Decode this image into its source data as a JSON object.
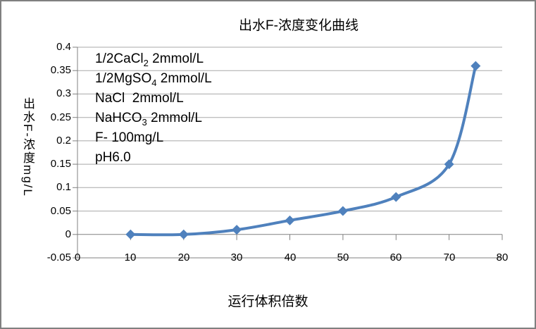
{
  "frame": {
    "background": "#FFFFFF",
    "border_color": "#808080"
  },
  "chart_data": {
    "type": "line",
    "title": "出水F-浓度变化曲线",
    "xlabel": "运行体积倍数",
    "ylabel": "出水F-浓度mg/L",
    "x": [
      10,
      20,
      30,
      40,
      50,
      60,
      70,
      75
    ],
    "y": [
      0,
      0,
      0.01,
      0.03,
      0.05,
      0.08,
      0.15,
      0.36
    ],
    "xlim": [
      0,
      80
    ],
    "ylim": [
      -0.05,
      0.4
    ],
    "x_tick_values": [
      0,
      10,
      20,
      30,
      40,
      50,
      60,
      70,
      80
    ],
    "x_tick_labels": [
      "0",
      "10",
      "20",
      "30",
      "40",
      "50",
      "60",
      "70",
      "80"
    ],
    "y_tick_values": [
      0.4,
      0.35,
      0.3,
      0.25,
      0.2,
      0.15,
      0.1,
      0.05,
      0,
      -0.05
    ],
    "y_tick_labels": [
      "0.4",
      "0.35",
      "0.3",
      "0.25",
      "0.2",
      "0.15",
      "0.1",
      "0.05",
      "0",
      "-0.05"
    ],
    "grid": true,
    "legend": "none",
    "line_color": "#4F81BD",
    "marker": "diamond",
    "grid_color": "#A8A8A8",
    "axis_color": "#808080",
    "annotation_lines": [
      {
        "pre": "1/2CaCl",
        "sub": "2",
        "post": " 2mmol/L"
      },
      {
        "pre": "1/2MgSO",
        "sub": "4",
        "post": " 2mmol/L"
      },
      {
        "pre": "NaCl  2mmol/L",
        "sub": "",
        "post": ""
      },
      {
        "pre": "NaHCO",
        "sub": "3",
        "post": " 2mmol/L"
      },
      {
        "pre": "F- 100mg/L",
        "sub": "",
        "post": ""
      },
      {
        "pre": "pH6.0",
        "sub": "",
        "post": ""
      }
    ]
  }
}
